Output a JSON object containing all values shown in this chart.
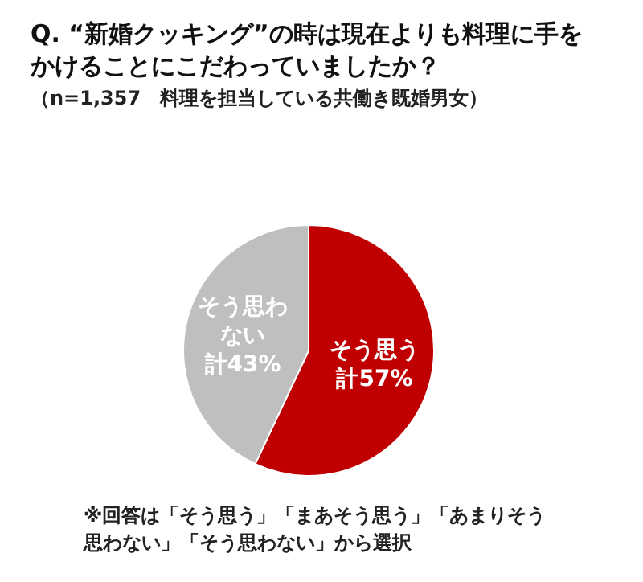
{
  "chart_data": {
    "type": "pie",
    "title": "Q. “新婚クッキング”の時は現在よりも料理に手をかけることにこだわっていましたか？",
    "subtitle": "（n=1,357　料理を担当している共働き既婚男女）",
    "categories": [
      "そう思う",
      "そう思わない"
    ],
    "values": [
      57,
      43
    ],
    "colors": [
      "#c00000",
      "#bfbfbf"
    ],
    "value_labels": [
      "計57%",
      "計43%"
    ],
    "annotations": [
      "※回答は「そう思う」「まあそう思う」「あまりそう思わない」「そう思わない」から選択"
    ],
    "legend": false
  }
}
